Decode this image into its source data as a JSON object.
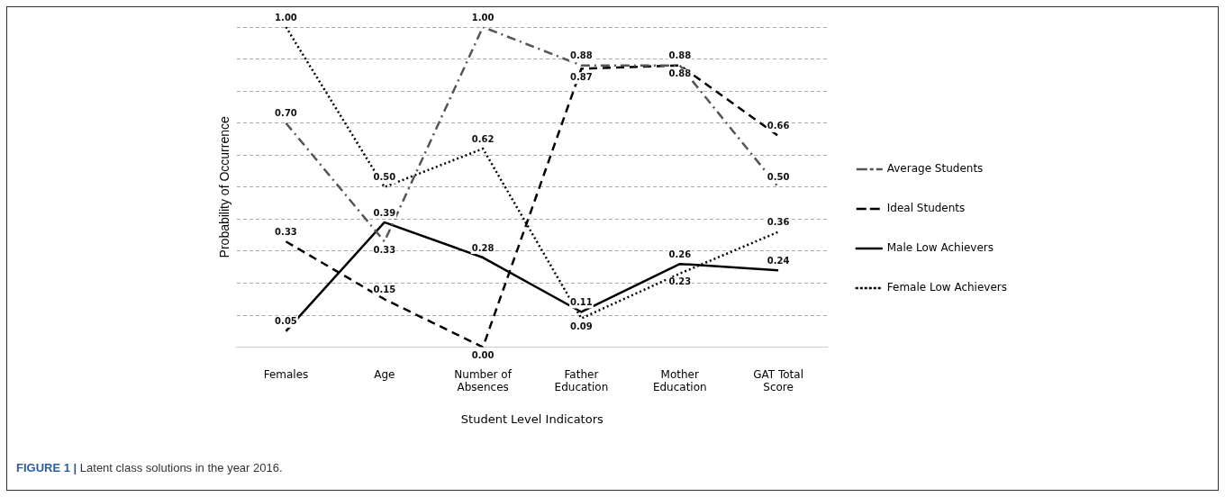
{
  "chart_data": {
    "type": "line",
    "xlabel": "Student Level Indicators",
    "ylabel": "Probability of Occurrence",
    "categories": [
      "Females",
      "Age",
      "Number of Absences",
      "Father Education",
      "Mother Education",
      "GAT Total Score"
    ],
    "series": [
      {
        "name": "Average Students",
        "color": "#555555",
        "line_style": "dashdot",
        "values": [
          0.7,
          0.33,
          1.0,
          0.88,
          0.88,
          0.5
        ],
        "value_labels": [
          "0.70",
          "0.33",
          "1.00",
          "0.88",
          "0.88",
          "0.50"
        ]
      },
      {
        "name": "Ideal Students",
        "color": "#000000",
        "line_style": "dashed",
        "values": [
          0.33,
          0.15,
          0.0,
          0.87,
          0.88,
          0.66
        ],
        "value_labels": [
          "0.33",
          "0.15",
          "0.00",
          "0.87",
          "0.88",
          "0.66"
        ]
      },
      {
        "name": "Male Low Achievers",
        "color": "#000000",
        "line_style": "solid",
        "values": [
          0.05,
          0.39,
          0.28,
          0.11,
          0.26,
          0.24
        ],
        "value_labels": [
          "0.05",
          "0.39",
          "0.28",
          "0.11",
          "0.26",
          "0.24"
        ]
      },
      {
        "name": "Female Low Achievers",
        "color": "#000000",
        "line_style": "dotted",
        "values": [
          1.0,
          0.5,
          0.62,
          0.09,
          0.23,
          0.36
        ],
        "value_labels": [
          "1.00",
          "0.50",
          "0.62",
          "0.09",
          "0.23",
          "0.36"
        ]
      }
    ],
    "ylim": [
      0,
      1
    ],
    "yticks": [
      {
        "value": 0,
        "label": null
      },
      {
        "value": 0.1,
        "label": null
      },
      {
        "value": 0.2,
        "label": null
      },
      {
        "value": 0.3,
        "label": null
      },
      {
        "value": 0.4,
        "label": null
      },
      {
        "value": 0.5,
        "label": null
      },
      {
        "value": 0.6,
        "label": null
      },
      {
        "value": 0.7,
        "label": null
      },
      {
        "value": 0.8,
        "label": null
      },
      {
        "value": 0.9,
        "label": null
      },
      {
        "value": 1,
        "label": null
      }
    ],
    "tick_labels": "x",
    "grid": "y",
    "legend": "right",
    "marker": "none",
    "annotations": [
      "FIGURE 1 | Latent class solutions in the year 2016."
    ]
  }
}
